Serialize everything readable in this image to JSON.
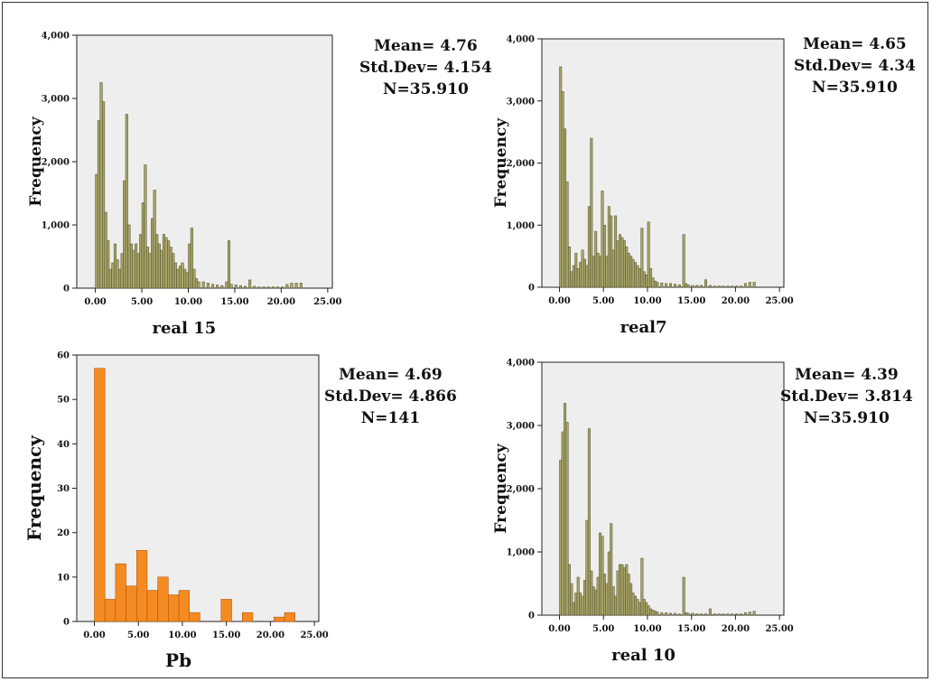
{
  "colors": {
    "plot_bg": "#eeeeee",
    "olive_bar": "#a9a56a",
    "olive_stroke": "#4d4a26",
    "orange_bar": "#f48b22",
    "orange_stroke": "#a84c00"
  },
  "chart_data": [
    {
      "id": "real15",
      "type": "bar",
      "title": "",
      "xlabel": "real 15",
      "ylabel": "Frequency",
      "xlim": [
        -2,
        25.5
      ],
      "ylim": [
        0,
        4000
      ],
      "xticks": [
        0,
        5,
        10,
        15,
        20,
        25
      ],
      "xtick_labels": [
        "0.00",
        "5.00",
        "10.00",
        "15.00",
        "20.00",
        "25.00"
      ],
      "yticks": [
        0,
        1000,
        2000,
        3000,
        4000
      ],
      "ytick_labels": [
        "0",
        "1,000",
        "2,000",
        "3,000",
        "4,000"
      ],
      "bin_width": 0.25,
      "x": [
        0.0,
        0.25,
        0.5,
        0.75,
        1.0,
        1.25,
        1.5,
        1.75,
        2.0,
        2.25,
        2.5,
        2.75,
        3.0,
        3.25,
        3.5,
        3.75,
        4.0,
        4.25,
        4.5,
        4.75,
        5.0,
        5.25,
        5.5,
        5.75,
        6.0,
        6.25,
        6.5,
        6.75,
        7.0,
        7.25,
        7.5,
        7.75,
        8.0,
        8.25,
        8.5,
        8.75,
        9.0,
        9.25,
        9.5,
        9.75,
        10.0,
        10.25,
        10.5,
        10.75,
        11.0,
        11.5,
        12.0,
        12.5,
        13.0,
        13.5,
        14.0,
        14.25,
        14.5,
        15.0,
        15.5,
        16.0,
        16.5,
        17.0,
        17.5,
        18.0,
        18.5,
        19.0,
        19.5,
        20.0,
        20.5,
        21.0,
        21.5,
        22.0
      ],
      "values": [
        1800,
        2650,
        3250,
        2950,
        1200,
        750,
        300,
        400,
        700,
        450,
        300,
        550,
        1700,
        2750,
        1000,
        700,
        600,
        700,
        550,
        850,
        1350,
        1950,
        650,
        550,
        1100,
        1550,
        850,
        700,
        600,
        850,
        800,
        750,
        650,
        550,
        400,
        300,
        350,
        400,
        300,
        250,
        700,
        950,
        300,
        150,
        100,
        100,
        80,
        60,
        50,
        40,
        100,
        750,
        60,
        50,
        40,
        30,
        130,
        30,
        20,
        20,
        20,
        20,
        20,
        20,
        60,
        80,
        80,
        80
      ]
    },
    {
      "id": "real7",
      "type": "bar",
      "title": "",
      "xlabel": "real7",
      "ylabel": "Frequency",
      "xlim": [
        -2,
        25.5
      ],
      "ylim": [
        0,
        4000
      ],
      "xticks": [
        0,
        5,
        10,
        15,
        20,
        25
      ],
      "xtick_labels": [
        "0.00",
        "5.00",
        "10.00",
        "15.00",
        "20.00",
        "25.00"
      ],
      "yticks": [
        0,
        1000,
        2000,
        3000,
        4000
      ],
      "ytick_labels": [
        "0",
        "1,000",
        "2,000",
        "3,000",
        "4,000"
      ],
      "bin_width": 0.25,
      "x": [
        0.0,
        0.25,
        0.5,
        0.75,
        1.0,
        1.25,
        1.5,
        1.75,
        2.0,
        2.25,
        2.5,
        2.75,
        3.0,
        3.25,
        3.5,
        3.75,
        4.0,
        4.25,
        4.5,
        4.75,
        5.0,
        5.25,
        5.5,
        5.75,
        6.0,
        6.25,
        6.5,
        6.75,
        7.0,
        7.25,
        7.5,
        7.75,
        8.0,
        8.25,
        8.5,
        8.75,
        9.0,
        9.25,
        9.5,
        9.75,
        10.0,
        10.25,
        10.5,
        10.75,
        11.0,
        11.5,
        12.0,
        12.5,
        13.0,
        13.5,
        14.0,
        14.25,
        14.5,
        15.0,
        15.5,
        16.0,
        16.5,
        17.0,
        17.5,
        18.0,
        18.5,
        19.0,
        19.5,
        20.0,
        20.5,
        21.0,
        21.5,
        22.0
      ],
      "values": [
        3550,
        3150,
        2550,
        1700,
        650,
        250,
        350,
        550,
        300,
        400,
        600,
        450,
        350,
        1300,
        2400,
        500,
        900,
        550,
        500,
        1550,
        1000,
        500,
        1300,
        1150,
        600,
        1150,
        750,
        850,
        800,
        750,
        650,
        550,
        500,
        450,
        400,
        350,
        300,
        950,
        250,
        200,
        1050,
        300,
        150,
        100,
        80,
        70,
        60,
        60,
        50,
        40,
        850,
        60,
        40,
        30,
        30,
        30,
        120,
        30,
        20,
        20,
        20,
        20,
        20,
        20,
        20,
        60,
        80,
        80
      ]
    },
    {
      "id": "pb",
      "type": "bar",
      "title": "",
      "xlabel": "Pb",
      "ylabel": "Frequency",
      "xlim": [
        -2,
        25.5
      ],
      "ylim": [
        0,
        60
      ],
      "xticks": [
        0,
        5,
        10,
        15,
        20,
        25
      ],
      "xtick_labels": [
        "0.00",
        "5.00",
        "10.00",
        "15.00",
        "20.00",
        "25.00"
      ],
      "yticks": [
        0,
        10,
        20,
        30,
        40,
        50,
        60
      ],
      "ytick_labels": [
        "0",
        "10",
        "20",
        "30",
        "40",
        "50",
        "60"
      ],
      "bin_width": 1.2,
      "x": [
        0.0,
        1.2,
        2.4,
        3.6,
        4.8,
        6.0,
        7.2,
        8.4,
        9.6,
        10.8,
        12.0,
        13.2,
        14.4,
        15.6,
        16.8,
        18.0,
        19.2,
        20.4,
        21.6
      ],
      "values": [
        57,
        5,
        13,
        8,
        16,
        7,
        10,
        6,
        7,
        2,
        0,
        0,
        5,
        0,
        2,
        0,
        0,
        1,
        2
      ]
    },
    {
      "id": "real10",
      "type": "bar",
      "title": "",
      "xlabel": "real 10",
      "ylabel": "Frequency",
      "xlim": [
        -2,
        25.5
      ],
      "ylim": [
        0,
        4000
      ],
      "xticks": [
        0,
        5,
        10,
        15,
        20,
        25
      ],
      "xtick_labels": [
        "0.00",
        "5.00",
        "10.00",
        "15.00",
        "20.00",
        "25.00"
      ],
      "yticks": [
        0,
        1000,
        2000,
        3000,
        4000
      ],
      "ytick_labels": [
        "0",
        "1,000",
        "2,000",
        "3,000",
        "4,000"
      ],
      "bin_width": 0.25,
      "x": [
        0.0,
        0.25,
        0.5,
        0.75,
        1.0,
        1.25,
        1.5,
        1.75,
        2.0,
        2.25,
        2.5,
        2.75,
        3.0,
        3.25,
        3.5,
        3.75,
        4.0,
        4.25,
        4.5,
        4.75,
        5.0,
        5.25,
        5.5,
        5.75,
        6.0,
        6.25,
        6.5,
        6.75,
        7.0,
        7.25,
        7.5,
        7.75,
        8.0,
        8.25,
        8.5,
        8.75,
        9.0,
        9.25,
        9.5,
        9.75,
        10.0,
        10.25,
        10.5,
        10.75,
        11.0,
        11.5,
        12.0,
        12.5,
        13.0,
        13.5,
        14.0,
        14.25,
        14.5,
        15.0,
        15.5,
        16.0,
        16.5,
        17.0,
        17.5,
        18.0,
        18.5,
        19.0,
        19.5,
        20.0,
        20.5,
        21.0,
        21.5,
        22.0
      ],
      "values": [
        2450,
        2900,
        3350,
        3050,
        800,
        500,
        200,
        350,
        600,
        350,
        300,
        550,
        1500,
        2950,
        700,
        450,
        400,
        600,
        1300,
        1250,
        650,
        500,
        1000,
        1450,
        450,
        300,
        700,
        800,
        800,
        750,
        800,
        650,
        500,
        350,
        300,
        250,
        200,
        900,
        250,
        200,
        150,
        100,
        80,
        60,
        50,
        40,
        40,
        30,
        30,
        20,
        600,
        40,
        30,
        30,
        20,
        20,
        20,
        100,
        20,
        20,
        20,
        20,
        20,
        20,
        20,
        40,
        50,
        60
      ]
    }
  ],
  "stats": [
    {
      "id": "real15",
      "mean": "Mean= 4.76",
      "std": "Std.Dev= 4.154",
      "n": "N=35.910"
    },
    {
      "id": "real7",
      "mean": "Mean= 4.65",
      "std": "Std.Dev= 4.34",
      "n": "N=35.910"
    },
    {
      "id": "pb",
      "mean": "Mean= 4.69",
      "std": "Std.Dev= 4.866",
      "n": "N=141"
    },
    {
      "id": "real10",
      "mean": "Mean= 4.39",
      "std": "Std.Dev= 3.814",
      "n": "N=35.910"
    }
  ]
}
